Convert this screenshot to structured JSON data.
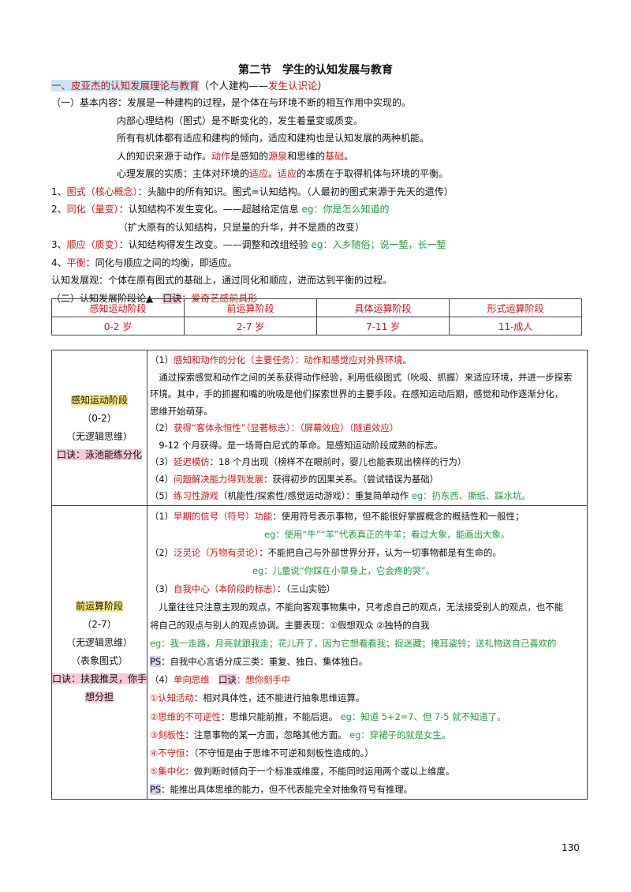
{
  "header": {
    "title": "第二节　学生的认知发展与教育"
  },
  "heading": [
    {
      "t": "一、皮亚杰的认知发展理论与教育",
      "s": "b"
    },
    {
      "t": "（个人建构——"
    },
    {
      "t": "发生认识论",
      "s": "r"
    },
    {
      "t": "）"
    }
  ],
  "intro": [
    [
      {
        "t": "（一）基本内容：发展是一种建构的过程，是个体在与环境不断的相互作用中实现的。"
      }
    ],
    [
      {
        "t": "内部心理结构（图式）是不断变化的，发生着量变或质变。"
      }
    ],
    [
      {
        "t": "所有有机体都有适应和建构的倾向，适应和建构也是认知发展的两种机能。"
      }
    ],
    [
      {
        "t": "人的知识来源于动作。"
      },
      {
        "t": "动作",
        "s": "r"
      },
      {
        "t": "是感知的"
      },
      {
        "t": "源泉",
        "s": "r"
      },
      {
        "t": "和思维的"
      },
      {
        "t": "基础",
        "s": "r"
      },
      {
        "t": "。"
      }
    ],
    [
      {
        "t": "心理发展的实质：主体对环境的"
      },
      {
        "t": "适应",
        "s": "r"
      },
      {
        "t": "。"
      },
      {
        "t": "适应",
        "s": "r"
      },
      {
        "t": "的本质在于取得机体与环境的平衡。"
      }
    ],
    [
      {
        "t": "1、"
      },
      {
        "t": "图式（核心概念）",
        "s": "r"
      },
      {
        "t": "：头脑中的所有知识。图式=认知结构。（人最初的图式来源于先天的遗传）"
      }
    ],
    [
      {
        "t": "2、"
      },
      {
        "t": "同化（量变）",
        "s": "r"
      },
      {
        "t": "：认知结构不发生变化。——超越给定信息 "
      },
      {
        "t": "eg：你是怎么知道的",
        "s": "g"
      }
    ],
    [
      {
        "t": "（扩大原有的认知结构，只是量的升华，并不是质的改变）"
      }
    ],
    [
      {
        "t": "3、"
      },
      {
        "t": "顺应（质变）",
        "s": "r"
      },
      {
        "t": "：认知结构得发生改变。——调整和改组经验 "
      },
      {
        "t": "eg：入乡随俗；说一堑，长一堑",
        "s": "g"
      }
    ],
    [
      {
        "t": "4、"
      },
      {
        "t": "平衡",
        "s": "r"
      },
      {
        "t": "：同化与顺应之间的均衡，即适应。"
      }
    ],
    [
      {
        "t": "认知发展观：个体在原有图式的基础上，通过同化和顺应，进而达到平衡的过程。"
      }
    ],
    [
      {
        "t": "（二）认知发展阶段论▲　"
      },
      {
        "t": "口诀",
        "s": "h"
      },
      {
        "t": "：爱奇艺感前具形",
        "s": "r"
      }
    ]
  ],
  "stages": {
    "names": [
      "感知运动阶段",
      "前运算阶段",
      "具体运算阶段",
      "形式运算阶段"
    ],
    "ages": [
      "0-2 岁",
      "2-7 岁",
      "7-11 岁",
      "11-成人"
    ]
  },
  "table": [
    {
      "left": [
        [
          {
            "t": "感知运动阶段",
            "s": "y"
          }
        ],
        [
          {
            "t": "（0-2）"
          }
        ],
        [
          {
            "t": "（无逻辑思维）"
          }
        ],
        [
          {
            "t": "口诀：泳池能练分化",
            "s": "h"
          }
        ]
      ],
      "right": [
        [
          {
            "t": "（1）"
          },
          {
            "t": "感知和动作的分化（主要任务）：动作和感觉应对外界环境。",
            "s": "r"
          }
        ],
        [
          {
            "t": "　通过探索感觉和动作之间的关系获得动作经验，利用低级图式（吮吸、抓握）来适应环境，并进一步探索"
          }
        ],
        [
          {
            "t": "环境。其中，手的抓握和嘴的吮吸是他们探索世界的主要手段。在感知运动后期，感觉和动作逐渐分化，"
          }
        ],
        [
          {
            "t": "思维开始萌芽。"
          }
        ],
        [
          {
            "t": "（2）"
          },
          {
            "t": "获得“客体永恒性”（显著标志）：（屏幕效应）（隧道效应）",
            "s": "r"
          }
        ],
        [
          {
            "t": "　9-12 个月获得。是一场哥白尼式的革命。是感知运动阶段成熟的标志。"
          }
        ],
        [
          {
            "t": "（3）"
          },
          {
            "t": "延迟模仿",
            "s": "r"
          },
          {
            "t": "：18 个月出现（榜样不在眼前时，婴儿也能表现出榜样的行为）"
          }
        ],
        [
          {
            "t": "（4）"
          },
          {
            "t": "问题解决能力得到发展",
            "s": "r"
          },
          {
            "t": "：获得初步的因果关系。（尝试错误为基础）"
          }
        ],
        [
          {
            "t": "（5）"
          },
          {
            "t": "练习性游戏",
            "s": "r"
          },
          {
            "t": "（机能性/探索性/感觉运动游戏）：重复简单动作 "
          },
          {
            "t": "eg：扔东西、撕纸、踩水坑。",
            "s": "g"
          }
        ]
      ]
    },
    {
      "left": [
        [
          {
            "t": "前运算阶段",
            "s": "y"
          }
        ],
        [
          {
            "t": "（2-7）"
          }
        ],
        [
          {
            "t": "（无逻辑思维）"
          }
        ],
        [
          {
            "t": "（表象图式）"
          }
        ],
        [
          {
            "t": "口诀：扶我推灵，你手",
            "s": "h"
          }
        ],
        [
          {
            "t": "想分担",
            "s": "h"
          }
        ]
      ],
      "right": [
        [
          {
            "t": "（1）"
          },
          {
            "t": "早期的信号（符号）功能",
            "s": "r"
          },
          {
            "t": "：使用符号表示事物，但不能很好掌握概念的概括性和一般性；"
          }
        ],
        [
          {
            "t": "eg：使用“牛”“羊”代表真正的牛羊；看过大象，能画出大象。",
            "s": "g"
          }
        ],
        [
          {
            "t": "（2）"
          },
          {
            "t": "泛灵论（万物有灵论）",
            "s": "r"
          },
          {
            "t": "：不能把自己与外部世界分开，认为一切事物都是有生命的。"
          }
        ],
        [
          {
            "t": "eg：儿童说“你踩在小草身上，它会疼的哭”。",
            "s": "g"
          }
        ],
        [
          {
            "t": "（3）"
          },
          {
            "t": "自我中心（本阶段的标志）",
            "s": "r"
          },
          {
            "t": "：（三山实验）"
          }
        ],
        [
          {
            "t": "　儿童往往只注意主观的观点，不能向客观事物集中，只考虑自己的观点，无法接受别人的观点，也不能"
          }
        ],
        [
          {
            "t": "将自己的观点与别人的观点协调。主要表现：①假想观众 ②独特的自我"
          }
        ],
        [
          {
            "t": " eg：我一走路，月亮就跟我走；花儿开了，因为它想看看我；捉迷藏；掩耳盗铃；送礼物送自己喜欢的",
            "s": "g"
          }
        ],
        [
          {
            "t": "PS",
            "s": "p"
          },
          {
            "t": "：自我中心言语分成三类：重复、独白、集体独白。"
          }
        ],
        [
          {
            "t": "（4）"
          },
          {
            "t": "单向思维",
            "s": "r"
          },
          {
            "t": "　"
          },
          {
            "t": "口诀",
            "s": "h"
          },
          {
            "t": "：想你刻手中",
            "s": "r"
          }
        ],
        [
          {
            "t": "①认知活动",
            "s": "r"
          },
          {
            "t": "：相对具体性，还不能进行抽象思维运算。"
          }
        ],
        [
          {
            "t": "②思维的不可逆性",
            "s": "r"
          },
          {
            "t": "：思维只能前推，不能后退。 "
          },
          {
            "t": "eg：知道 5+2=7、但 7-5 就不知道了。",
            "s": "g"
          }
        ],
        [
          {
            "t": "③刻板性",
            "s": "r"
          },
          {
            "t": "：注意事物的某一方面，忽略其他方面。 "
          },
          {
            "t": "eg：穿裙子的就是女生。",
            "s": "g"
          }
        ],
        [
          {
            "t": "④不守恒",
            "s": "r"
          },
          {
            "t": "：（不守恒是由于思维不可逆和刻板性造成的。）"
          }
        ],
        [
          {
            "t": "⑤集中化",
            "s": "r"
          },
          {
            "t": "：做判断时倾向于一个标准或维度，不能同时运用两个或以上维度。"
          }
        ],
        [
          {
            "t": "PS",
            "s": "p"
          },
          {
            "t": "：能推出具体思维的能力，但不代表能完全对抽象符号有推理。"
          }
        ]
      ]
    }
  ],
  "page_number": "130"
}
